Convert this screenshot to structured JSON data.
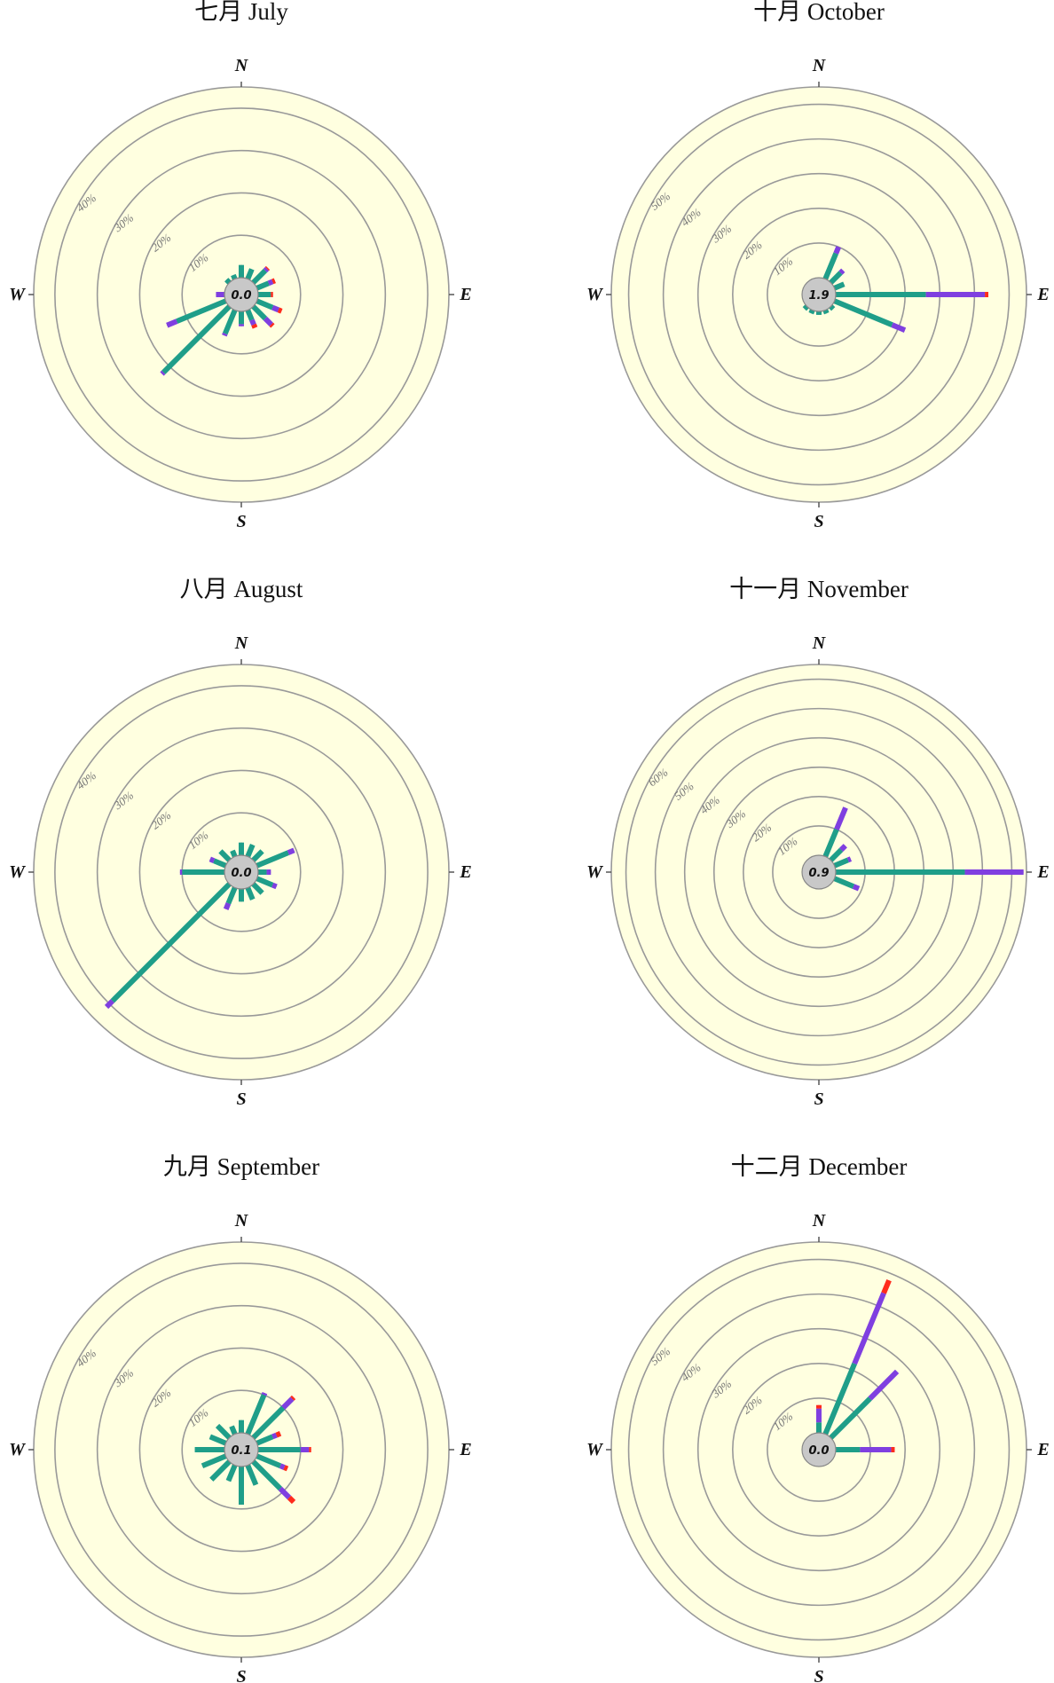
{
  "legend_colors": {
    "low": "#1f9e89",
    "mid": "#7f3fe0",
    "high": "#ff2b1c"
  },
  "ring_color": "#999999",
  "face_color": "#ffffe0",
  "chart_data": [
    {
      "type": "polar-bar",
      "title": "七月 July",
      "calm": "0.0",
      "cardinals": [
        "N",
        "E",
        "S",
        "W"
      ],
      "ring_labels": [
        "10%",
        "20%",
        "30%",
        "40%"
      ],
      "rmax": 45,
      "directions": [
        0,
        22.5,
        45,
        67.5,
        90,
        112.5,
        135,
        157.5,
        180,
        202.5,
        225,
        247.5,
        270,
        292.5,
        315,
        337.5
      ],
      "series": [
        {
          "values": [
            3,
            2.5,
            4,
            3,
            3,
            4,
            4,
            2.5,
            3,
            6,
            22,
            12.5,
            0,
            0,
            1,
            1
          ]
        },
        {
          "values": [
            0,
            0,
            0.6,
            1,
            0,
            1.5,
            2,
            1.2,
            0.5,
            0.5,
            0.5,
            2.5,
            2,
            0,
            0,
            0
          ]
        },
        {
          "values": [
            0,
            0,
            0.3,
            0.6,
            0.5,
            0.8,
            0.5,
            0.8,
            0,
            0,
            0,
            0,
            0,
            0,
            0,
            0
          ]
        }
      ]
    },
    {
      "type": "polar-bar",
      "title": "十月 October",
      "calm": "1.9",
      "cardinals": [
        "N",
        "E",
        "S",
        "W"
      ],
      "ring_labels": [
        "10%",
        "20%",
        "30%",
        "40%",
        "50%"
      ],
      "rmax": 55,
      "directions": [
        0,
        22.5,
        45,
        67.5,
        90,
        112.5,
        135,
        157.5,
        180,
        202.5,
        225,
        247.5,
        270,
        292.5,
        315,
        337.5
      ],
      "series": [
        {
          "values": [
            0,
            8,
            4,
            3,
            26,
            18,
            1,
            1,
            1,
            1,
            1,
            0,
            0,
            0,
            0,
            0
          ]
        },
        {
          "values": [
            0,
            2,
            1,
            0,
            17,
            4,
            0,
            0,
            0,
            0,
            0,
            0,
            0,
            0,
            0,
            0
          ]
        },
        {
          "values": [
            0,
            0,
            0,
            0,
            1,
            0,
            0,
            0,
            0,
            0,
            0,
            0,
            0,
            0,
            0,
            0
          ]
        }
      ]
    },
    {
      "type": "polar-bar",
      "title": "八月 August",
      "calm": "0.0",
      "cardinals": [
        "N",
        "E",
        "S",
        "W"
      ],
      "ring_labels": [
        "10%",
        "20%",
        "30%",
        "40%"
      ],
      "rmax": 45,
      "directions": [
        0,
        22.5,
        45,
        67.5,
        90,
        112.5,
        135,
        157.5,
        180,
        202.5,
        225,
        247.5,
        270,
        292.5,
        315,
        337.5
      ],
      "series": [
        {
          "values": [
            3,
            3,
            3,
            8,
            2,
            4,
            3,
            3,
            3,
            4,
            39,
            0,
            10,
            3,
            3,
            1.5
          ]
        },
        {
          "values": [
            0,
            0,
            0,
            1.5,
            1,
            1,
            0,
            0,
            0,
            1.5,
            2,
            0,
            0.5,
            1,
            0,
            0
          ]
        },
        {
          "values": [
            0,
            0,
            0,
            0,
            0,
            0,
            0,
            0,
            0,
            0,
            0,
            0,
            0,
            0,
            0,
            0
          ]
        }
      ]
    },
    {
      "type": "polar-bar",
      "title": "十一月 November",
      "calm": "0.9",
      "cardinals": [
        "N",
        "E",
        "S",
        "W"
      ],
      "ring_labels": [
        "10%",
        "20%",
        "30%",
        "40%",
        "50%",
        "60%"
      ],
      "rmax": 65,
      "directions": [
        0,
        22.5,
        45,
        67.5,
        90,
        112.5,
        135,
        157.5,
        180,
        202.5,
        225,
        247.5,
        270,
        292.5,
        315,
        337.5
      ],
      "series": [
        {
          "values": [
            0,
            10,
            5,
            5,
            44,
            7,
            0,
            0,
            0,
            0,
            0,
            0,
            0,
            0,
            0,
            0
          ]
        },
        {
          "values": [
            0,
            8,
            2,
            1,
            20,
            2,
            0,
            0,
            0,
            0,
            0,
            0,
            0,
            0,
            0,
            0
          ]
        },
        {
          "values": [
            0,
            0,
            0,
            0,
            0,
            0,
            0,
            0,
            0,
            0,
            0,
            0,
            0,
            0,
            0,
            0
          ]
        }
      ]
    },
    {
      "type": "polar-bar",
      "title": "九月 September",
      "calm": "0.1",
      "cardinals": [
        "N",
        "E",
        "S",
        "W"
      ],
      "ring_labels": [
        "10%",
        "20%",
        "30%",
        "40%"
      ],
      "rmax": 45,
      "directions": [
        0,
        22.5,
        45,
        67.5,
        90,
        112.5,
        135,
        157.5,
        180,
        202.5,
        225,
        247.5,
        270,
        292.5,
        315,
        337.5
      ],
      "series": [
        {
          "values": [
            3,
            10,
            10,
            4,
            10,
            6,
            9,
            5,
            9,
            4,
            6,
            6,
            7,
            4,
            4,
            2
          ]
        },
        {
          "values": [
            0,
            0.5,
            3,
            1,
            2,
            1,
            3,
            0,
            0,
            0,
            0,
            0,
            0,
            0,
            0,
            0
          ]
        },
        {
          "values": [
            0,
            0,
            0.5,
            1,
            0.5,
            0.8,
            1.5,
            0,
            0,
            0,
            0,
            0,
            0,
            0,
            0,
            0
          ]
        }
      ]
    },
    {
      "type": "polar-bar",
      "title": "十二月 December",
      "calm": "0.0",
      "cardinals": [
        "N",
        "E",
        "S",
        "W"
      ],
      "ring_labels": [
        "10%",
        "20%",
        "30%",
        "40%",
        "50%"
      ],
      "rmax": 55,
      "directions": [
        0,
        22.5,
        45,
        67.5,
        90,
        112.5,
        135,
        157.5,
        180,
        202.5,
        225,
        247.5,
        270,
        292.5,
        315,
        337.5
      ],
      "series": [
        {
          "values": [
            3,
            22,
            16,
            0,
            7,
            0,
            0,
            0,
            0,
            0,
            0,
            0,
            0,
            0,
            0,
            0
          ]
        },
        {
          "values": [
            4,
            22,
            11,
            0,
            9,
            0,
            0,
            0,
            0,
            0,
            0,
            0,
            0,
            0,
            0,
            0
          ]
        },
        {
          "values": [
            1,
            4,
            0,
            0,
            1,
            0,
            0,
            0,
            0,
            0,
            0,
            0,
            0,
            0,
            0,
            0
          ]
        }
      ]
    }
  ]
}
